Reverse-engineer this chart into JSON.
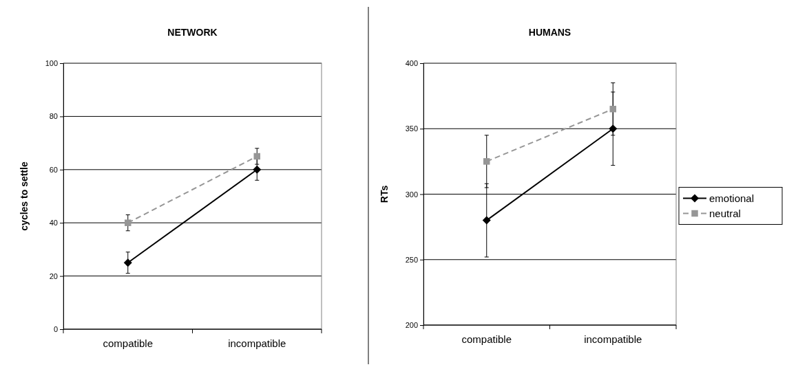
{
  "chart_data": [
    {
      "type": "line",
      "title": "NETWORK",
      "ylabel": "cycles to settle",
      "categories": [
        "compatible",
        "incompatible"
      ],
      "ylim": [
        0,
        100
      ],
      "yticks": [
        0,
        20,
        40,
        60,
        80,
        100
      ],
      "grid": "y",
      "legend": false,
      "series": [
        {
          "color": "#000000",
          "values": [
            25,
            60
          ],
          "errors": [
            4,
            4
          ],
          "marker": "diamond",
          "line_style": "solid"
        },
        {
          "color": "#969696",
          "values": [
            40,
            65
          ],
          "errors": [
            3,
            3
          ],
          "marker": "square",
          "line_style": "dashed"
        }
      ]
    },
    {
      "type": "line",
      "title": "HUMANS",
      "ylabel": "RTs",
      "categories": [
        "compatible",
        "incompatible"
      ],
      "ylim": [
        200,
        400
      ],
      "yticks": [
        200,
        250,
        300,
        350,
        400
      ],
      "grid": "y",
      "legend": "right",
      "series": [
        {
          "name": "emotional",
          "color": "#000000",
          "values": [
            280,
            350
          ],
          "errors": [
            28,
            28
          ],
          "marker": "diamond",
          "line_style": "solid"
        },
        {
          "name": "neutral",
          "color": "#969696",
          "values": [
            325,
            365
          ],
          "errors": [
            20,
            20
          ],
          "marker": "square",
          "line_style": "dashed"
        }
      ]
    }
  ]
}
